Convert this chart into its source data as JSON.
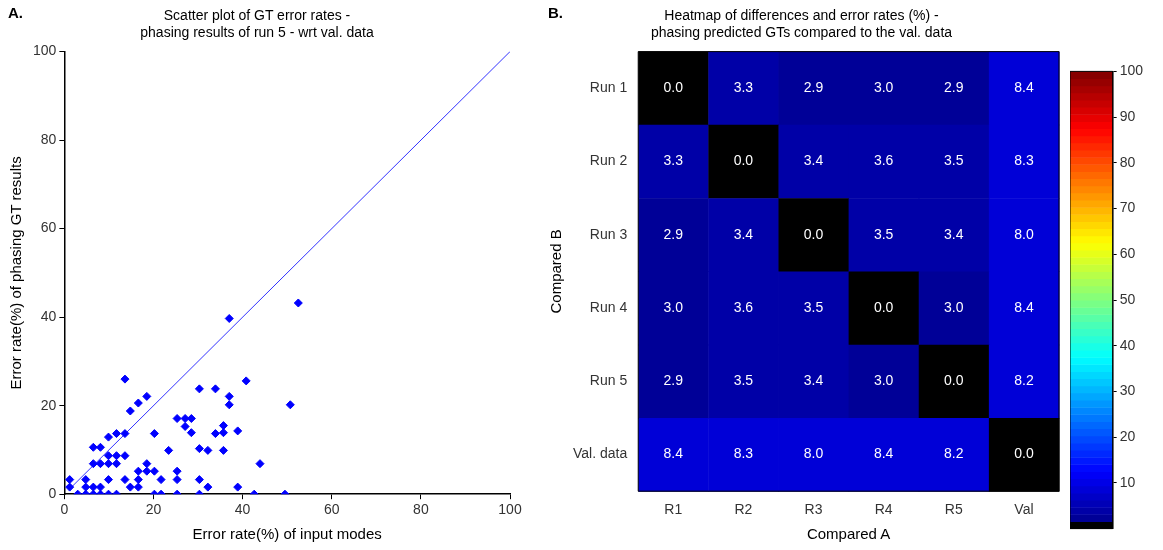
{
  "chart_data": [
    {
      "type": "scatter",
      "title": "Scatter plot of GT error rates -\nphasing results of run 5 - wrt val. data",
      "xlabel": "Error rate(%) of input modes",
      "ylabel": "Error rate(%) of phasing GT results",
      "xlim": [
        0,
        100
      ],
      "ylim": [
        0,
        100
      ],
      "xticks": [
        0,
        20,
        40,
        60,
        80,
        100
      ],
      "yticks": [
        0,
        20,
        40,
        60,
        80,
        100
      ],
      "annotations": [
        "A."
      ],
      "series": [
        {
          "type": "scatter",
          "color": "#0000ff",
          "marker": "diamond",
          "x": [
            1.2,
            1.2,
            3.0,
            4.8,
            4.8,
            4.8,
            6.5,
            6.5,
            6.5,
            6.5,
            8.1,
            8.1,
            8.1,
            8.1,
            9.9,
            9.9,
            9.9,
            9.9,
            9.9,
            11.7,
            11.7,
            11.7,
            11.7,
            13.6,
            13.6,
            13.6,
            13.6,
            14.8,
            14.8,
            16.6,
            16.6,
            16.6,
            16.6,
            18.5,
            18.5,
            18.5,
            20.2,
            20.2,
            20.2,
            21.7,
            21.7,
            23.4,
            25.3,
            25.3,
            25.3,
            25.3,
            27.1,
            27.1,
            28.5,
            28.5,
            30.3,
            30.3,
            30.3,
            30.3,
            32.2,
            32.2,
            33.9,
            33.9,
            35.7,
            35.7,
            35.7,
            37.0,
            37.0,
            38.9,
            38.9,
            40.8,
            42.6,
            43.9,
            49.5,
            50.7,
            37.0,
            52.5
          ],
          "values": [
            3.3,
            1.6,
            0,
            3.3,
            1.6,
            0,
            6.9,
            10.6,
            1.6,
            0,
            10.6,
            6.9,
            1.6,
            0,
            12.9,
            8.7,
            6.9,
            3.3,
            0,
            13.7,
            8.7,
            6.9,
            0,
            26,
            13.7,
            8.7,
            3.3,
            18.8,
            1.6,
            20.6,
            5.2,
            3.3,
            1.6,
            22.1,
            6.9,
            5.2,
            13.7,
            5.2,
            0,
            3.3,
            0,
            9.9,
            5.2,
            3.3,
            0,
            17.1,
            17.1,
            15.3,
            17.1,
            13.9,
            23.8,
            10.3,
            3.3,
            0,
            9.9,
            1.6,
            23.8,
            13.7,
            15.5,
            13.9,
            9.9,
            22.1,
            20.2,
            14.3,
            1.6,
            25.6,
            0,
            6.9,
            0,
            20.2,
            39.7,
            43.2
          ]
        },
        {
          "type": "line",
          "color": "#3333ff",
          "marker": "none",
          "x": [
            1,
            100
          ],
          "values": [
            1,
            100
          ]
        }
      ]
    },
    {
      "type": "heatmap",
      "title": "Heatmap of differences and error rates (%) -\nphasing predicted GTs compared to the val. data",
      "xlabel": "Compared A",
      "ylabel": "Compared B",
      "annotations": [
        "B."
      ],
      "categories": [
        "R1",
        "R2",
        "R3",
        "R4",
        "R5",
        "Val"
      ],
      "y_categories": [
        "Run 1",
        "Run 2",
        "Run 3",
        "Run 4",
        "Run 5",
        "Val. data"
      ],
      "cells": [
        [
          0,
          3.3,
          2.9,
          3.0,
          2.9,
          8.4
        ],
        [
          3.3,
          0,
          3.4,
          3.6,
          3.5,
          8.3
        ],
        [
          2.9,
          3.4,
          0,
          3.5,
          3.4,
          8.0
        ],
        [
          3.0,
          3.6,
          3.5,
          0,
          3.0,
          8.4
        ],
        [
          2.9,
          3.5,
          3.4,
          3.0,
          0,
          8.2
        ],
        [
          8.4,
          8.3,
          8.0,
          8.4,
          8.2,
          0
        ]
      ],
      "cell_labels": [
        [
          "0.0",
          "3.3",
          "2.9",
          "3.0",
          "2.9",
          "8.4"
        ],
        [
          "3.3",
          "0.0",
          "3.4",
          "3.6",
          "3.5",
          "8.3"
        ],
        [
          "2.9",
          "3.4",
          "0.0",
          "3.5",
          "3.4",
          "8.0"
        ],
        [
          "3.0",
          "3.6",
          "3.5",
          "0.0",
          "3.0",
          "8.4"
        ],
        [
          "2.9",
          "3.5",
          "3.4",
          "3.0",
          "0.0",
          "8.2"
        ],
        [
          "8.4",
          "8.3",
          "8.0",
          "8.4",
          "8.2",
          "0.0"
        ]
      ],
      "clim": [
        0,
        100
      ],
      "cticks": [
        10,
        20,
        30,
        40,
        50,
        60,
        70,
        80,
        90,
        100
      ]
    }
  ]
}
